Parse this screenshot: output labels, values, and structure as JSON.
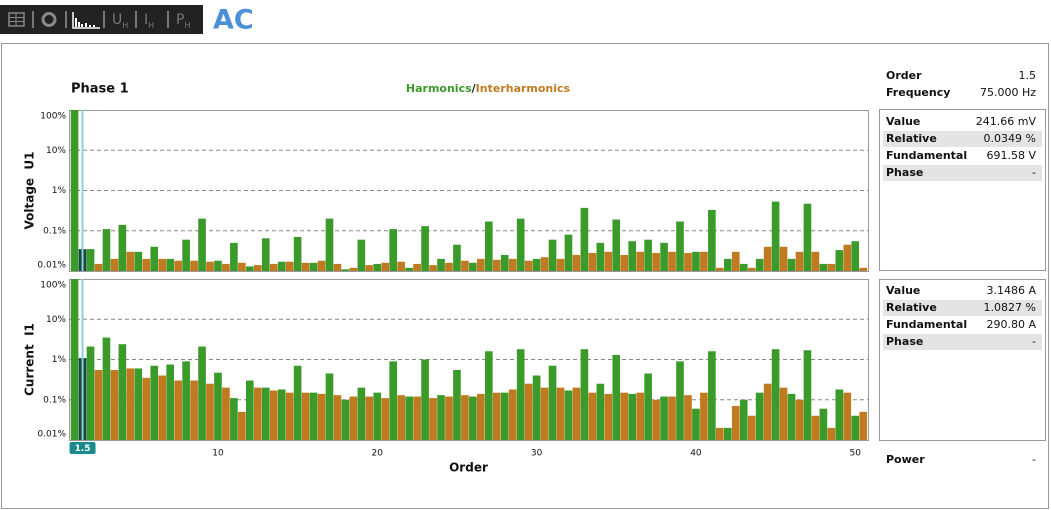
{
  "toolbar": {
    "tabs": [
      {
        "main": "U",
        "sub": "H"
      },
      {
        "main": "I",
        "sub": "H"
      },
      {
        "main": "P",
        "sub": "H"
      }
    ],
    "mode": "AC"
  },
  "chart_data": [
    {
      "type": "bar",
      "title": "Phase 1",
      "legend_separator": "/",
      "ylabel": "Voltage  U1",
      "log": true,
      "grid": true,
      "cursor": 1.5,
      "highlight_color": "#17463a",
      "cursor_color": "#8fd0e0",
      "xlim": [
        0.65,
        50.8
      ],
      "ylim": [
        0.01,
        100
      ],
      "yticks": [
        {
          "value": 0.01,
          "label": "0.01%"
        },
        {
          "value": 0.1,
          "label": "0.1%"
        },
        {
          "value": 1,
          "label": "1%"
        },
        {
          "value": 10,
          "label": "10%"
        },
        {
          "value": 100,
          "label": "100%"
        }
      ],
      "series": [
        {
          "name": "Harmonics",
          "color": "#3a9a2a",
          "x": [
            1,
            2,
            3,
            4,
            5,
            6,
            7,
            8,
            9,
            10,
            11,
            12,
            13,
            14,
            15,
            16,
            17,
            18,
            19,
            20,
            21,
            22,
            23,
            24,
            25,
            26,
            27,
            28,
            29,
            30,
            31,
            32,
            33,
            34,
            35,
            36,
            37,
            38,
            39,
            40,
            41,
            42,
            43,
            44,
            45,
            46,
            47,
            48,
            49,
            50
          ],
          "values": [
            100,
            0.035,
            0.11,
            0.14,
            0.03,
            0.04,
            0.02,
            0.06,
            0.2,
            0.018,
            0.05,
            0.013,
            0.065,
            0.017,
            0.07,
            0.016,
            0.2,
            0.011,
            0.06,
            0.015,
            0.11,
            0.012,
            0.13,
            0.02,
            0.045,
            0.016,
            0.17,
            0.025,
            0.2,
            0.02,
            0.06,
            0.08,
            0.37,
            0.05,
            0.19,
            0.055,
            0.06,
            0.05,
            0.17,
            0.03,
            0.33,
            0.02,
            0.015,
            0.02,
            0.53,
            0.02,
            0.47,
            0.015,
            0.033,
            0.055
          ]
        },
        {
          "name": "Interharmonics",
          "color": "#c07a20",
          "x": [
            1.5,
            2.5,
            3.5,
            4.5,
            5.5,
            6.5,
            7.5,
            8.5,
            9.5,
            10.5,
            11.5,
            12.5,
            13.5,
            14.5,
            15.5,
            16.5,
            17.5,
            18.5,
            19.5,
            20.5,
            21.5,
            22.5,
            23.5,
            24.5,
            25.5,
            26.5,
            27.5,
            28.5,
            29.5,
            30.5,
            31.5,
            32.5,
            33.5,
            34.5,
            35.5,
            36.5,
            37.5,
            38.5,
            39.5,
            40.5,
            41.5,
            42.5,
            43.5,
            44.5,
            45.5,
            46.5,
            47.5,
            48.5,
            49.5,
            50.5
          ],
          "values": [
            0.0349,
            0.015,
            0.02,
            0.03,
            0.02,
            0.02,
            0.018,
            0.018,
            0.017,
            0.015,
            0.016,
            0.014,
            0.015,
            0.017,
            0.016,
            0.018,
            0.015,
            0.012,
            0.014,
            0.016,
            0.017,
            0.015,
            0.014,
            0.016,
            0.018,
            0.02,
            0.019,
            0.02,
            0.018,
            0.022,
            0.02,
            0.025,
            0.028,
            0.03,
            0.025,
            0.03,
            0.028,
            0.03,
            0.028,
            0.03,
            0.012,
            0.03,
            0.012,
            0.04,
            0.04,
            0.03,
            0.03,
            0.015,
            0.045,
            0.012
          ]
        }
      ]
    },
    {
      "type": "bar",
      "ylabel": "Current  I1",
      "xlabel": "Order",
      "log": true,
      "grid": true,
      "cursor": 1.5,
      "highlight_color": "#17463a",
      "cursor_color": "#8fd0e0",
      "cursor_label_color": "#1a8a8a",
      "xlim": [
        0.65,
        50.8
      ],
      "ylim": [
        0.01,
        100
      ],
      "xticks": [
        10,
        20,
        30,
        40,
        50
      ],
      "yticks": [
        {
          "value": 0.01,
          "label": "0.01%"
        },
        {
          "value": 0.1,
          "label": "0.1%"
        },
        {
          "value": 1,
          "label": "1%"
        },
        {
          "value": 10,
          "label": "10%"
        },
        {
          "value": 100,
          "label": "100%"
        }
      ],
      "series": [
        {
          "color": "#3a9a2a",
          "x": [
            1,
            2,
            3,
            4,
            5,
            6,
            7,
            8,
            9,
            10,
            11,
            12,
            13,
            14,
            15,
            16,
            17,
            18,
            19,
            20,
            21,
            22,
            23,
            24,
            25,
            26,
            27,
            28,
            29,
            30,
            31,
            32,
            33,
            34,
            35,
            36,
            37,
            38,
            39,
            40,
            41,
            42,
            43,
            44,
            45,
            46,
            47,
            48,
            49,
            50
          ],
          "values": [
            100,
            2.1,
            3.5,
            2.4,
            0.6,
            0.7,
            0.75,
            0.9,
            2.1,
            0.47,
            0.11,
            0.3,
            0.2,
            0.18,
            0.7,
            0.15,
            0.45,
            0.1,
            0.2,
            0.15,
            0.9,
            0.12,
            1.0,
            0.13,
            0.55,
            0.12,
            1.6,
            0.15,
            1.8,
            0.4,
            0.7,
            0.17,
            1.8,
            0.25,
            1.3,
            0.14,
            0.45,
            0.12,
            0.9,
            0.06,
            1.6,
            0.02,
            0.1,
            0.15,
            1.8,
            0.14,
            1.7,
            0.06,
            0.18,
            0.04
          ]
        },
        {
          "color": "#c07a20",
          "x": [
            1.5,
            2.5,
            3.5,
            4.5,
            5.5,
            6.5,
            7.5,
            8.5,
            9.5,
            10.5,
            11.5,
            12.5,
            13.5,
            14.5,
            15.5,
            16.5,
            17.5,
            18.5,
            19.5,
            20.5,
            21.5,
            22.5,
            23.5,
            24.5,
            25.5,
            26.5,
            27.5,
            28.5,
            29.5,
            30.5,
            31.5,
            32.5,
            33.5,
            34.5,
            35.5,
            36.5,
            37.5,
            38.5,
            39.5,
            40.5,
            41.5,
            42.5,
            43.5,
            44.5,
            45.5,
            46.5,
            47.5,
            48.5,
            49.5,
            50.5
          ],
          "values": [
            1.0827,
            0.55,
            0.55,
            0.6,
            0.35,
            0.4,
            0.3,
            0.3,
            0.25,
            0.2,
            0.05,
            0.2,
            0.17,
            0.15,
            0.15,
            0.14,
            0.13,
            0.12,
            0.12,
            0.11,
            0.13,
            0.12,
            0.11,
            0.12,
            0.13,
            0.14,
            0.15,
            0.18,
            0.25,
            0.2,
            0.2,
            0.2,
            0.15,
            0.14,
            0.15,
            0.15,
            0.1,
            0.12,
            0.13,
            0.15,
            0.02,
            0.07,
            0.04,
            0.25,
            0.2,
            0.1,
            0.04,
            0.02,
            0.15,
            0.05
          ]
        }
      ]
    }
  ],
  "side_panel": {
    "info": [
      [
        "Order",
        "1.5"
      ],
      [
        "Frequency",
        "75.000 Hz"
      ]
    ],
    "voltage": [
      [
        "Value",
        "241.66 mV"
      ],
      [
        "Relative",
        "0.0349 %"
      ],
      [
        "Fundamental",
        "691.58 V"
      ],
      [
        "Phase",
        "-"
      ]
    ],
    "current": [
      [
        "Value",
        "3.1486 A"
      ],
      [
        "Relative",
        "1.0827 %"
      ],
      [
        "Fundamental",
        "290.80 A"
      ],
      [
        "Phase",
        "-"
      ]
    ],
    "power": [
      "Power",
      "-"
    ]
  }
}
